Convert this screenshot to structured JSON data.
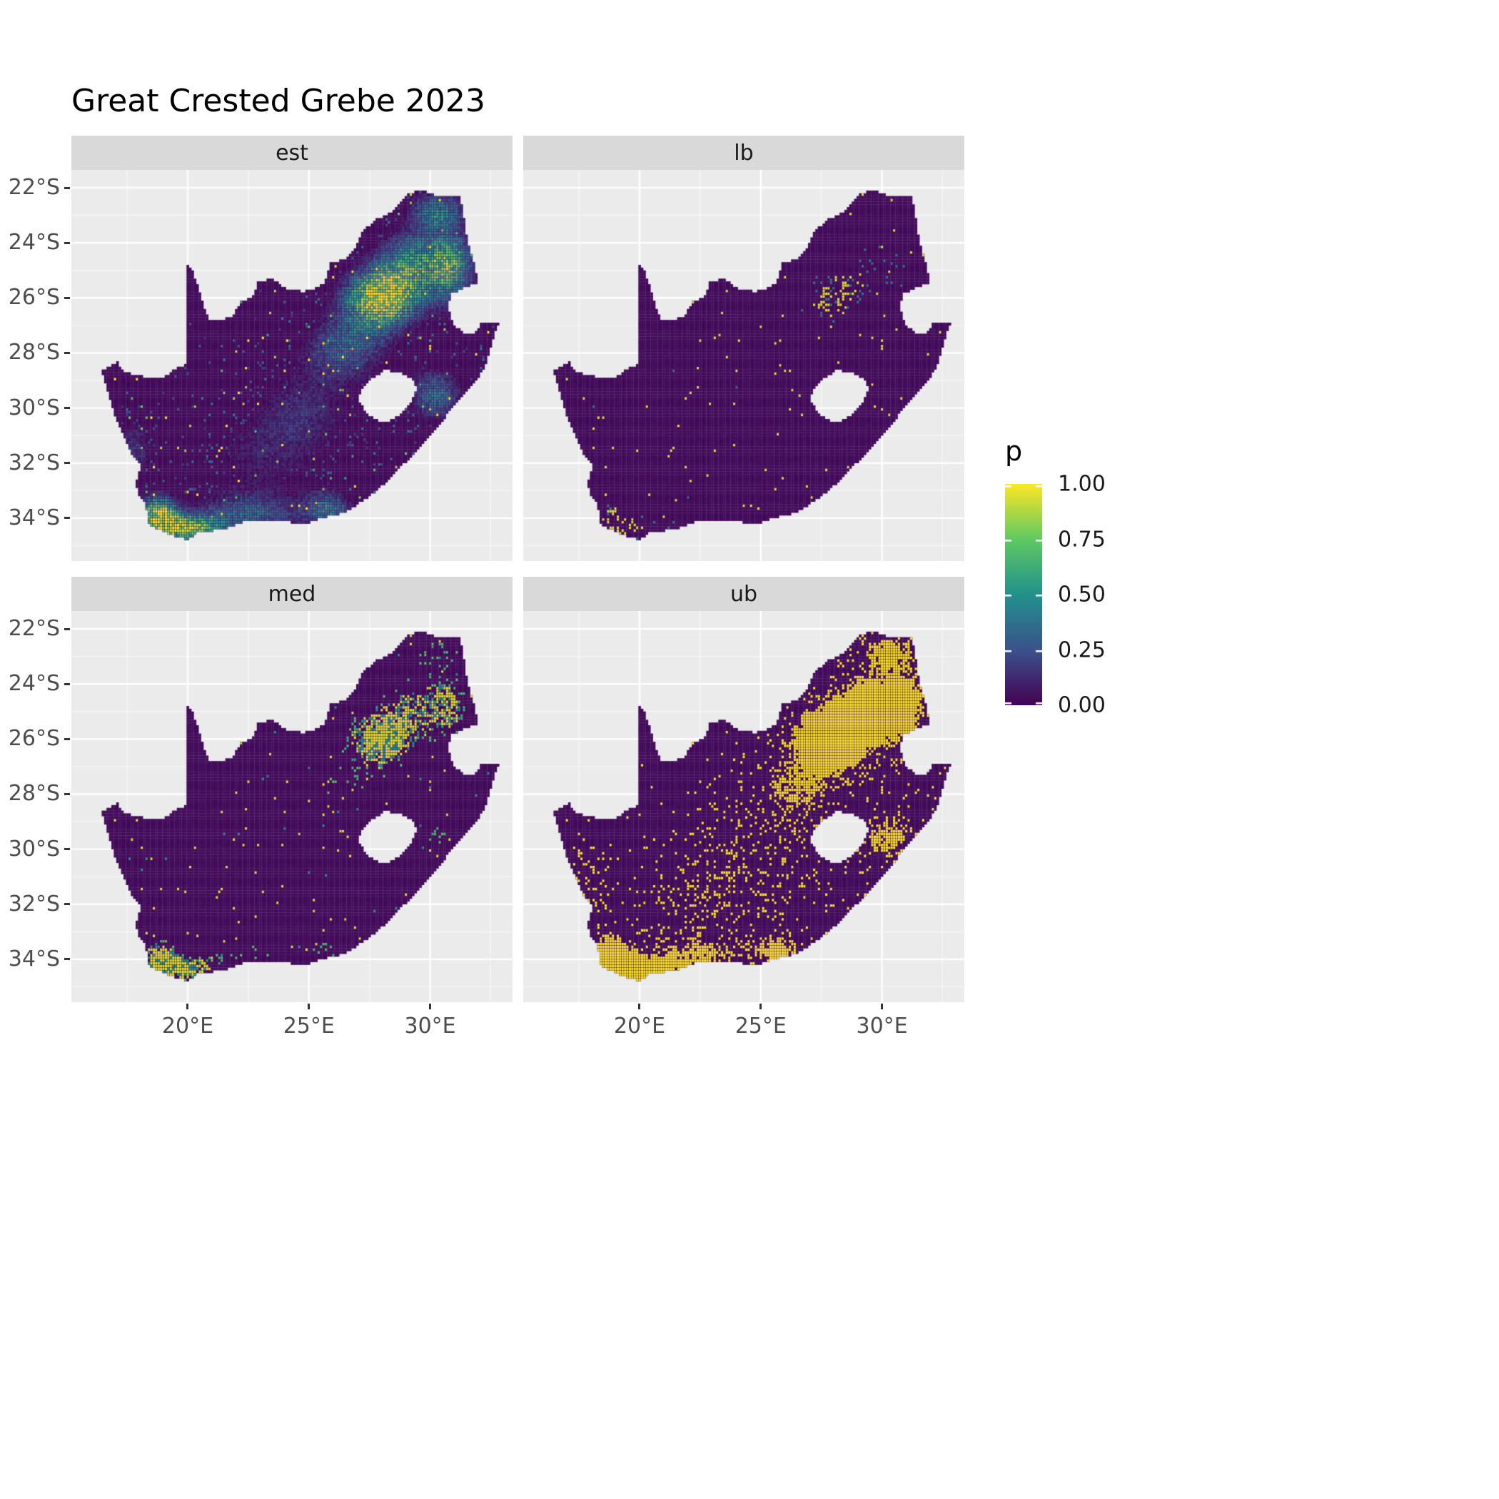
{
  "title": "Great Crested Grebe 2023",
  "legend": {
    "title": "p",
    "ticks": [
      {
        "label": "1.00",
        "value": 1.0
      },
      {
        "label": "0.75",
        "value": 0.75
      },
      {
        "label": "0.50",
        "value": 0.5
      },
      {
        "label": "0.25",
        "value": 0.25
      },
      {
        "label": "0.00",
        "value": 0.0
      }
    ]
  },
  "axes": {
    "y_ticks": [
      {
        "label": "22°S",
        "lat": -22
      },
      {
        "label": "24°S",
        "lat": -24
      },
      {
        "label": "26°S",
        "lat": -26
      },
      {
        "label": "28°S",
        "lat": -28
      },
      {
        "label": "30°S",
        "lat": -30
      },
      {
        "label": "32°S",
        "lat": -32
      },
      {
        "label": "34°S",
        "lat": -34
      }
    ],
    "x_ticks": [
      {
        "label": "20°E",
        "lon": 20
      },
      {
        "label": "25°E",
        "lon": 25
      },
      {
        "label": "30°E",
        "lon": 30
      }
    ]
  },
  "colors": {
    "panel_bg": "#EBEBEB",
    "strip_bg": "#D9D9D9",
    "grid_major": "#FFFFFF",
    "axis_text": "#4D4D4D",
    "strip_text": "#1A1A1A",
    "title_text": "#000000",
    "viridis_stops": [
      "#440154",
      "#3B528B",
      "#21918C",
      "#5EC962",
      "#FDE725"
    ]
  },
  "chart_data": {
    "type": "heatmap",
    "subtype": "faceted raster occupancy-probability map of South Africa",
    "title": "Great Crested Grebe 2023",
    "legend_title": "p",
    "p_range": [
      0,
      1
    ],
    "x_axis": {
      "label": "",
      "ticks_deg_east": [
        20,
        25,
        30
      ]
    },
    "y_axis": {
      "label": "",
      "ticks_deg_south": [
        22,
        24,
        26,
        28,
        30,
        32,
        34
      ]
    },
    "legend_position": "right",
    "grid": true,
    "facets": [
      {
        "id": "est",
        "label": "est",
        "mode": "continuous",
        "params": {
          "core_thresh": 0.14,
          "base": 0.12,
          "gain": 1.4,
          "speckle_base": 0.97,
          "speckle_field_w": 0.5,
          "speckle_lo": 0.15,
          "speckle_r": 0.3
        },
        "pattern": "continuous 0-1 estimates; high (green/yellow) cluster over Gauteng-Highveld (27-30E, 24-27S), Western Cape (18-21E, 33-35S) and south coast; widespread faint teal speckle elsewhere on dark purple background"
      },
      {
        "id": "lb",
        "label": "lb",
        "mode": "sparse",
        "params": {
          "thresh": 0.78,
          "keep": 0.45,
          "mid_thresh": 0.5,
          "mid_keep": 0.93,
          "rare": 0.993
        },
        "pattern": "lower bound; almost entirely 0 (dark purple) with sparse isolated yellow cells, slightly denser near the Highveld and south-west"
      },
      {
        "id": "med",
        "label": "med",
        "mode": "mid",
        "params": {
          "thresh": 0.58,
          "hi_keep": 0.25,
          "mid_thresh": 0.4,
          "mid_keep": 0.75,
          "rare": 0.99
        },
        "pattern": "median; mostly 0 with yellow clusters over Gauteng-Highveld and eastern escarpment, scattered yellow/teal cells in the south-west"
      },
      {
        "id": "ub",
        "label": "ub",
        "mode": "binary",
        "params": {
          "thresh": 0.33,
          "speckle_base": 0.975,
          "speckle_field_w": 0.6
        },
        "pattern": "upper bound; binary-looking, large solid yellow block around 27-30E / 25-27S, dense yellow speckling across the Western/Southern Cape and scattered yellow elsewhere"
      }
    ],
    "map_window": {
      "lon_min": 15.2,
      "lon_max": 33.4,
      "lat_top": -21.35,
      "lat_bottom": -35.56
    },
    "cell_size_deg": 0.1,
    "south_africa_outline": [
      [
        19.98,
        -24.75
      ],
      [
        20.2,
        -25.0
      ],
      [
        20.45,
        -25.65
      ],
      [
        20.65,
        -26.25
      ],
      [
        20.9,
        -26.8
      ],
      [
        21.35,
        -26.85
      ],
      [
        21.85,
        -26.65
      ],
      [
        22.2,
        -26.15
      ],
      [
        22.65,
        -26.0
      ],
      [
        22.9,
        -25.45
      ],
      [
        23.5,
        -25.3
      ],
      [
        24.05,
        -25.65
      ],
      [
        24.8,
        -25.78
      ],
      [
        25.4,
        -25.6
      ],
      [
        25.65,
        -25.45
      ],
      [
        25.9,
        -24.72
      ],
      [
        26.45,
        -24.6
      ],
      [
        26.9,
        -24.2
      ],
      [
        27.2,
        -23.6
      ],
      [
        27.8,
        -23.15
      ],
      [
        28.4,
        -22.9
      ],
      [
        29.1,
        -22.18
      ],
      [
        29.7,
        -22.12
      ],
      [
        30.35,
        -22.3
      ],
      [
        31.25,
        -22.33
      ],
      [
        31.4,
        -23.1
      ],
      [
        31.55,
        -23.95
      ],
      [
        31.85,
        -24.8
      ],
      [
        31.97,
        -25.45
      ],
      [
        31.3,
        -25.68
      ],
      [
        30.82,
        -25.88
      ],
      [
        30.78,
        -26.4
      ],
      [
        30.95,
        -26.95
      ],
      [
        31.35,
        -27.25
      ],
      [
        31.85,
        -27.3
      ],
      [
        32.12,
        -26.86
      ],
      [
        32.85,
        -26.86
      ],
      [
        32.55,
        -27.6
      ],
      [
        32.35,
        -28.3
      ],
      [
        31.98,
        -28.92
      ],
      [
        31.35,
        -29.55
      ],
      [
        30.85,
        -30.05
      ],
      [
        30.25,
        -30.8
      ],
      [
        29.65,
        -31.35
      ],
      [
        28.9,
        -32.05
      ],
      [
        28.15,
        -32.72
      ],
      [
        27.4,
        -33.28
      ],
      [
        26.5,
        -33.78
      ],
      [
        25.65,
        -33.98
      ],
      [
        24.85,
        -34.2
      ],
      [
        23.95,
        -34.12
      ],
      [
        23.35,
        -34.1
      ],
      [
        22.55,
        -34.05
      ],
      [
        22.1,
        -34.22
      ],
      [
        21.3,
        -34.44
      ],
      [
        20.5,
        -34.48
      ],
      [
        19.98,
        -34.8
      ],
      [
        19.35,
        -34.62
      ],
      [
        18.85,
        -34.4
      ],
      [
        18.45,
        -34.32
      ],
      [
        18.33,
        -33.95
      ],
      [
        18.28,
        -33.45
      ],
      [
        17.95,
        -33.1
      ],
      [
        17.85,
        -32.75
      ],
      [
        18.05,
        -32.1
      ],
      [
        17.6,
        -31.55
      ],
      [
        17.25,
        -30.85
      ],
      [
        16.95,
        -30.15
      ],
      [
        16.7,
        -29.45
      ],
      [
        16.45,
        -28.63
      ],
      [
        17.1,
        -28.35
      ],
      [
        17.45,
        -28.72
      ],
      [
        18.25,
        -28.88
      ],
      [
        19.05,
        -28.85
      ],
      [
        19.65,
        -28.5
      ],
      [
        19.99,
        -28.4
      ]
    ],
    "lesotho_hole": [
      [
        28.15,
        -28.62
      ],
      [
        28.95,
        -28.78
      ],
      [
        29.35,
        -29.05
      ],
      [
        29.45,
        -29.35
      ],
      [
        29.15,
        -29.87
      ],
      [
        28.68,
        -30.28
      ],
      [
        28.12,
        -30.55
      ],
      [
        27.72,
        -30.4
      ],
      [
        27.35,
        -30.15
      ],
      [
        27.0,
        -29.63
      ],
      [
        27.32,
        -29.12
      ],
      [
        27.78,
        -28.82
      ]
    ],
    "intensity_hotspots": [
      {
        "lon": 28.0,
        "lat": -26.0,
        "sx": 1.6,
        "sy": 1.1,
        "a": 1.0
      },
      {
        "lon": 29.3,
        "lat": -24.6,
        "sx": 1.5,
        "sy": 1.2,
        "a": 0.55
      },
      {
        "lon": 30.9,
        "lat": -24.9,
        "sx": 1.0,
        "sy": 1.4,
        "a": 0.6
      },
      {
        "lon": 30.3,
        "lat": -22.8,
        "sx": 1.2,
        "sy": 0.7,
        "a": 0.5
      },
      {
        "lon": 26.5,
        "lat": -27.8,
        "sx": 1.8,
        "sy": 1.2,
        "a": 0.45
      },
      {
        "lon": 30.2,
        "lat": -29.5,
        "sx": 1.1,
        "sy": 1.0,
        "a": 0.5
      },
      {
        "lon": 18.8,
        "lat": -33.9,
        "sx": 0.8,
        "sy": 0.7,
        "a": 0.95
      },
      {
        "lon": 20.0,
        "lat": -34.4,
        "sx": 1.3,
        "sy": 0.5,
        "a": 0.8
      },
      {
        "lon": 22.5,
        "lat": -33.9,
        "sx": 2.2,
        "sy": 0.8,
        "a": 0.45
      },
      {
        "lon": 25.8,
        "lat": -33.7,
        "sx": 1.0,
        "sy": 0.7,
        "a": 0.5
      },
      {
        "lon": 23.0,
        "lat": -31.8,
        "sx": 3.0,
        "sy": 1.6,
        "a": 0.22
      },
      {
        "lon": 24.8,
        "lat": -30.0,
        "sx": 2.2,
        "sy": 1.5,
        "a": 0.25
      },
      {
        "lon": 17.8,
        "lat": -31.5,
        "sx": 0.8,
        "sy": 1.2,
        "a": 0.3
      }
    ]
  }
}
